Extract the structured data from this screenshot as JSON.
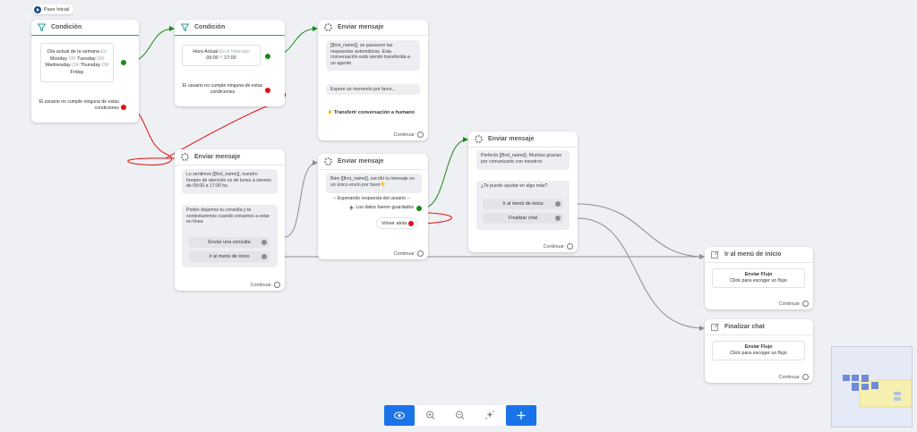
{
  "start": {
    "label": "Paso Inicial"
  },
  "nodes": [
    {
      "title": "Condición",
      "condition": {
        "field": "Día actual de la semana",
        "operator": "Es",
        "values": [
          "Monday",
          "Tuesday",
          "Wednesday",
          "Thursday",
          "Friday"
        ],
        "joiner": "OR"
      },
      "else": "El usuario no cumple ninguna de estas condiciones"
    },
    {
      "title": "Condición",
      "condition": {
        "field": "Hora Actual",
        "operator": "Es el Intervalo",
        "values": [
          "09:00",
          "17:00"
        ],
        "joiner": "Y"
      },
      "else": "El usuario no cumple ninguna de estas condiciones"
    },
    {
      "title": "Enviar mensaje",
      "messages": [
        "[[first_name]], se pausaron las respuestas automáticas. Esta conversación está siendo transferida a un agente",
        "Espere un momento por favor..."
      ],
      "action": "Transferir conversación a humano",
      "continue": "Continuar"
    },
    {
      "title": "Enviar mensaje",
      "messages": [
        "Lo sentimos [[first_name]], nuestro horario de atención es de lunes a viernes de 09:00 a 17:00 hs.",
        "Podés dejarnos tu consulta y te contestaremos cuando volvamos a estar en línea"
      ],
      "buttons": [
        "Enviar una consulta",
        "Ir al menú de inicio"
      ],
      "continue": "Continuar"
    },
    {
      "title": "Enviar mensaje",
      "messages": [
        "Bien [[first_name]], escribí tu mensaje en un único envío por favor👇"
      ],
      "waiting": "-- Esperando respuesta del usuario --",
      "action": "Los datos fueron guardados",
      "back": "Volver atrás",
      "continue": "Continuar"
    },
    {
      "title": "Enviar mensaje",
      "messages": [
        "Perfecto [[first_name]]. Muchas gracias por comunicarte con nosotros",
        "¿Te puedo ayudar en algo más?"
      ],
      "buttons": [
        "Ir al menú de inicio",
        "Finalizar chat"
      ],
      "continue": "Continuar"
    },
    {
      "title": "Ir al menú de inicio",
      "flow": {
        "title": "Enviar Flujo",
        "hint": "Click para escoger un flujo"
      },
      "continue": "Continuar"
    },
    {
      "title": "Finalizar chat",
      "flow": {
        "title": "Enviar Flujo",
        "hint": "Click para escoger un flujo"
      },
      "continue": "Continuar"
    }
  ]
}
